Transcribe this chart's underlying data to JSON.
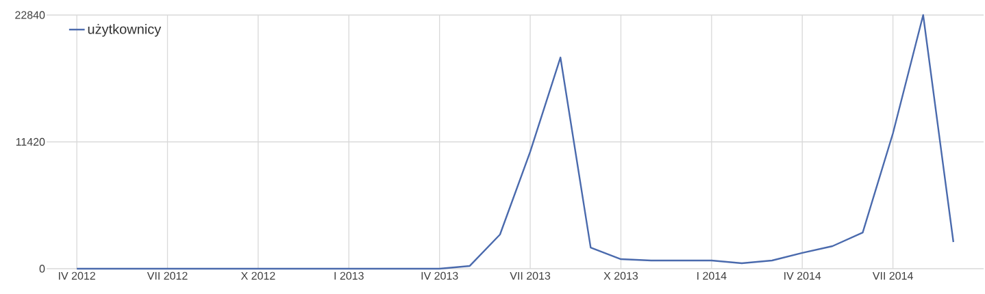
{
  "chart_data": {
    "type": "line",
    "x": [
      "2012-04",
      "2012-05",
      "2012-06",
      "2012-07",
      "2012-08",
      "2012-09",
      "2012-10",
      "2012-11",
      "2012-12",
      "2013-01",
      "2013-02",
      "2013-03",
      "2013-04",
      "2013-05",
      "2013-06",
      "2013-07",
      "2013-08",
      "2013-09",
      "2013-10",
      "2013-11",
      "2013-12",
      "2014-01",
      "2014-02",
      "2014-03",
      "2014-04",
      "2014-05",
      "2014-06",
      "2014-07",
      "2014-08",
      "2014-09"
    ],
    "series": [
      {
        "name": "użytkownicy",
        "color": "#4a6aad",
        "values": [
          0,
          0,
          0,
          0,
          0,
          0,
          0,
          0,
          0,
          0,
          0,
          0,
          0,
          250,
          3080,
          10530,
          19020,
          1900,
          860,
          740,
          740,
          740,
          490,
          740,
          1420,
          2030,
          3260,
          12190,
          22840,
          2400
        ]
      }
    ],
    "xlim": [
      "2012-03",
      "2014-10"
    ],
    "xticks": [
      {
        "value": "2012-04",
        "label": "IV 2012"
      },
      {
        "value": "2012-07",
        "label": "VII 2012"
      },
      {
        "value": "2012-10",
        "label": "X 2012"
      },
      {
        "value": "2013-01",
        "label": "I 2013"
      },
      {
        "value": "2013-04",
        "label": "IV 2013"
      },
      {
        "value": "2013-07",
        "label": "VII 2013"
      },
      {
        "value": "2013-10",
        "label": "X 2013"
      },
      {
        "value": "2014-01",
        "label": "I 2014"
      },
      {
        "value": "2014-04",
        "label": "IV 2014"
      },
      {
        "value": "2014-07",
        "label": "VII 2014"
      }
    ],
    "ylim": [
      0,
      22840
    ],
    "yticks": [
      0,
      11420,
      22840
    ],
    "grid": true,
    "legend": "top left",
    "marker": "none",
    "line_style": "solid"
  }
}
